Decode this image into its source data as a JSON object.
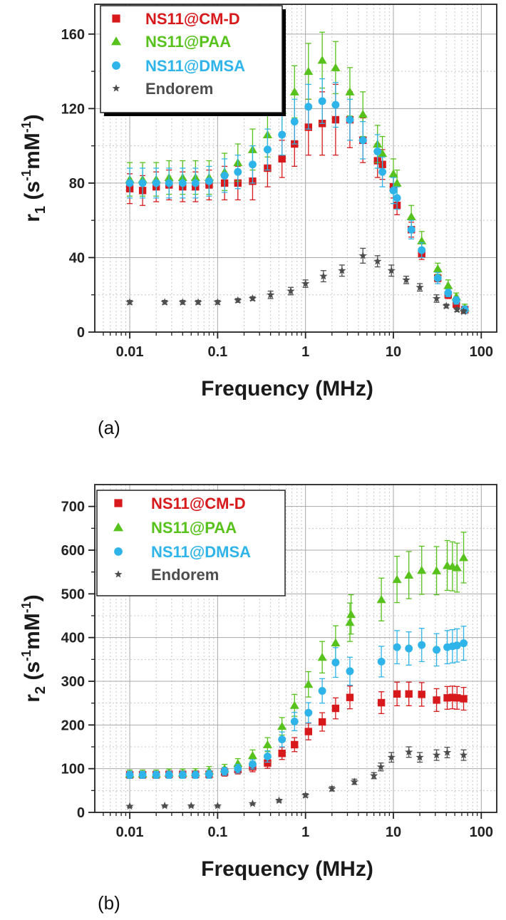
{
  "chart_data": [
    {
      "type": "scatter",
      "panel_label": "(a)",
      "xlabel": "Frequency (MHz)",
      "ylabel": "r1 (s-1mM-1)",
      "xscale": "log",
      "xlim": [
        0.004,
        150
      ],
      "ylim": [
        0,
        176
      ],
      "x_ticks": [
        0.01,
        0.1,
        1,
        10,
        100
      ],
      "x_tick_labels": [
        "0.01",
        "0.1",
        "1",
        "10",
        "100"
      ],
      "y_ticks": [
        0,
        40,
        80,
        120,
        160
      ],
      "y_tick_labels": [
        "0",
        "40",
        "80",
        "120",
        "160"
      ],
      "grid": true,
      "legend_position": "top-left",
      "series": [
        {
          "name": "NS11@CM-D",
          "color": "#d7191c",
          "marker": "square",
          "x": [
            0.01,
            0.014,
            0.02,
            0.028,
            0.04,
            0.056,
            0.08,
            0.12,
            0.17,
            0.25,
            0.37,
            0.54,
            0.75,
            1.08,
            1.55,
            2.2,
            3.2,
            4.5,
            6.6,
            7.5,
            10,
            11,
            16,
            21,
            32,
            42,
            52,
            65
          ],
          "y": [
            77,
            76,
            78,
            79,
            78,
            78,
            79,
            80,
            80,
            81,
            88,
            93,
            101,
            110,
            112,
            114,
            114,
            103,
            92,
            90,
            78,
            68,
            55,
            42,
            29,
            20,
            15,
            12
          ],
          "err": [
            8,
            8,
            8,
            8,
            8,
            8,
            8,
            9,
            9,
            10,
            10,
            10,
            12,
            15,
            17,
            19,
            15,
            12,
            9,
            8,
            6,
            5,
            4,
            3,
            2,
            2,
            2,
            2
          ]
        },
        {
          "name": "NS11@PAA",
          "color": "#58c21d",
          "marker": "triangle",
          "x": [
            0.01,
            0.014,
            0.02,
            0.028,
            0.04,
            0.056,
            0.08,
            0.12,
            0.17,
            0.25,
            0.37,
            0.54,
            0.75,
            1.08,
            1.55,
            2.2,
            3.2,
            4.5,
            6.6,
            7.5,
            10,
            11,
            16,
            21,
            32,
            42,
            52,
            65
          ],
          "y": [
            82,
            82,
            82,
            83,
            83,
            83,
            83,
            86,
            91,
            98,
            106,
            119,
            129,
            140,
            146,
            142,
            129,
            117,
            101,
            96,
            85,
            80,
            62,
            49,
            34,
            25,
            19,
            13
          ],
          "err": [
            9,
            9,
            9,
            9,
            9,
            9,
            9,
            10,
            10,
            11,
            12,
            13,
            14,
            15,
            15,
            14,
            13,
            12,
            10,
            9,
            8,
            7,
            6,
            5,
            3,
            3,
            2,
            2
          ]
        },
        {
          "name": "NS11@DMSA",
          "color": "#2fb4e9",
          "marker": "circle",
          "x": [
            0.01,
            0.014,
            0.02,
            0.028,
            0.04,
            0.056,
            0.08,
            0.12,
            0.17,
            0.25,
            0.37,
            0.54,
            0.75,
            1.08,
            1.55,
            2.2,
            3.2,
            4.5,
            6.6,
            7.5,
            10,
            11,
            16,
            21,
            32,
            42,
            52,
            65
          ],
          "y": [
            80,
            80,
            80,
            80,
            80,
            80,
            81,
            84,
            86,
            90,
            98,
            106,
            113,
            121,
            124,
            122,
            114,
            103,
            97,
            86,
            76,
            72,
            55,
            44,
            29,
            21,
            17,
            12
          ],
          "err": [
            8,
            8,
            8,
            8,
            8,
            8,
            8,
            9,
            9,
            10,
            11,
            11,
            12,
            12,
            12,
            12,
            11,
            10,
            9,
            8,
            7,
            6,
            5,
            4,
            3,
            2,
            2,
            2
          ]
        },
        {
          "name": "Endorem",
          "color": "#4d4d4d",
          "marker": "star",
          "x": [
            0.01,
            0.025,
            0.04,
            0.06,
            0.1,
            0.17,
            0.25,
            0.4,
            0.68,
            1.0,
            1.6,
            2.6,
            4.5,
            6.6,
            9.5,
            14,
            20,
            31,
            40,
            53,
            63
          ],
          "y": [
            16,
            16,
            16,
            16,
            16,
            17,
            18,
            20,
            22,
            26,
            30,
            33,
            41,
            38,
            33,
            28,
            24,
            18,
            14,
            12,
            11
          ],
          "err": [
            1,
            1,
            1,
            1,
            1,
            1,
            1,
            2,
            2,
            2,
            3,
            3,
            4,
            3,
            3,
            2,
            2,
            2,
            1,
            1,
            1
          ]
        }
      ]
    },
    {
      "type": "scatter",
      "panel_label": "(b)",
      "xlabel": "Frequency (MHz)",
      "ylabel": "r2 (s-1mM-1)",
      "xscale": "log",
      "xlim": [
        0.004,
        150
      ],
      "ylim": [
        0,
        750
      ],
      "x_ticks": [
        0.01,
        0.1,
        1,
        10,
        100
      ],
      "x_tick_labels": [
        "0.01",
        "0.1",
        "1",
        "10",
        "100"
      ],
      "y_ticks": [
        0,
        100,
        200,
        300,
        400,
        500,
        600,
        700
      ],
      "y_tick_labels": [
        "0",
        "100",
        "200",
        "300",
        "400",
        "500",
        "600",
        "700"
      ],
      "grid": true,
      "legend_position": "top-left",
      "series": [
        {
          "name": "NS11@CM-D",
          "color": "#d7191c",
          "marker": "square",
          "x": [
            0.01,
            0.014,
            0.02,
            0.028,
            0.04,
            0.056,
            0.08,
            0.12,
            0.17,
            0.25,
            0.37,
            0.54,
            0.75,
            1.08,
            1.55,
            2.2,
            3.2,
            7.3,
            11,
            15,
            21,
            31,
            41,
            47,
            53,
            63
          ],
          "y": [
            86,
            86,
            86,
            87,
            87,
            87,
            87,
            92,
            98,
            104,
            113,
            135,
            155,
            185,
            207,
            238,
            263,
            251,
            271,
            271,
            270,
            257,
            262,
            263,
            262,
            260
          ],
          "err": [
            8,
            8,
            8,
            8,
            8,
            8,
            8,
            9,
            10,
            11,
            12,
            14,
            16,
            19,
            21,
            24,
            26,
            25,
            27,
            27,
            27,
            26,
            26,
            26,
            26,
            26
          ]
        },
        {
          "name": "NS11@PAA",
          "color": "#58c21d",
          "marker": "triangle",
          "x": [
            0.01,
            0.014,
            0.02,
            0.028,
            0.04,
            0.056,
            0.08,
            0.12,
            0.17,
            0.25,
            0.37,
            0.54,
            0.75,
            1.08,
            1.55,
            2.2,
            3.2,
            3.3,
            7.3,
            11,
            15,
            21,
            31,
            41,
            47,
            53,
            63
          ],
          "y": [
            88,
            88,
            88,
            90,
            90,
            91,
            95,
            100,
            112,
            130,
            155,
            197,
            245,
            293,
            355,
            388,
            435,
            453,
            487,
            533,
            543,
            554,
            553,
            565,
            563,
            560,
            583
          ],
          "err": [
            9,
            9,
            9,
            9,
            9,
            9,
            10,
            10,
            11,
            13,
            16,
            20,
            25,
            29,
            36,
            39,
            44,
            45,
            49,
            53,
            54,
            55,
            55,
            57,
            56,
            56,
            58
          ]
        },
        {
          "name": "NS11@DMSA",
          "color": "#2fb4e9",
          "marker": "circle",
          "x": [
            0.01,
            0.014,
            0.02,
            0.028,
            0.04,
            0.056,
            0.08,
            0.12,
            0.17,
            0.25,
            0.37,
            0.54,
            0.75,
            1.08,
            1.55,
            2.2,
            3.2,
            7.3,
            11,
            15,
            21,
            31,
            41,
            47,
            53,
            63
          ],
          "y": [
            86,
            86,
            86,
            86,
            86,
            86,
            87,
            94,
            100,
            110,
            128,
            167,
            208,
            228,
            278,
            343,
            323,
            345,
            378,
            375,
            383,
            372,
            378,
            380,
            382,
            387
          ],
          "err": [
            8,
            8,
            8,
            8,
            8,
            8,
            9,
            9,
            10,
            11,
            13,
            17,
            21,
            23,
            28,
            34,
            32,
            35,
            38,
            38,
            38,
            37,
            38,
            38,
            38,
            39
          ]
        },
        {
          "name": "Endorem",
          "color": "#4d4d4d",
          "marker": "star",
          "x": [
            0.01,
            0.025,
            0.05,
            0.1,
            0.25,
            0.5,
            1.0,
            2.0,
            3.6,
            6.0,
            7.2,
            9.5,
            15,
            20,
            31,
            41,
            63
          ],
          "y": [
            14,
            15,
            15,
            15,
            20,
            27,
            39,
            54,
            70,
            84,
            104,
            126,
            138,
            126,
            131,
            137,
            131
          ],
          "err": [
            2,
            2,
            2,
            2,
            2,
            3,
            4,
            5,
            6,
            7,
            9,
            11,
            12,
            11,
            12,
            12,
            12
          ]
        }
      ]
    }
  ]
}
